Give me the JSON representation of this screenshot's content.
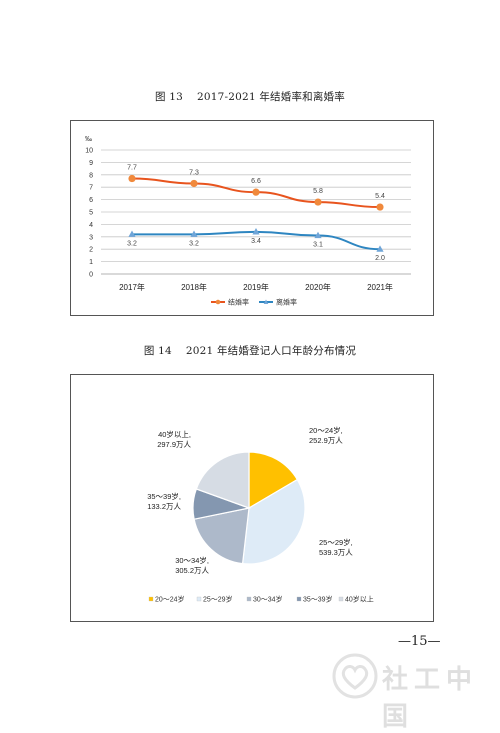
{
  "captions": {
    "fig13_number": "图 13",
    "fig13_title": "2017-2021 年结婚率和离婚率",
    "fig14_number": "图 14",
    "fig14_title": "2021 年结婚登记人口年龄分布情况"
  },
  "page_number": "—15—",
  "logo_text": "社工中国",
  "chart_data": [
    {
      "type": "line",
      "title": "",
      "ylabel": "‰",
      "ylim": [
        0,
        10
      ],
      "yticks": [
        "0",
        "1",
        "2",
        "3",
        "4",
        "5",
        "6",
        "7",
        "8",
        "9",
        "10"
      ],
      "categories": [
        "2017年",
        "2018年",
        "2019年",
        "2020年",
        "2021年"
      ],
      "grid": true,
      "legend_position": "bottom",
      "series": [
        {
          "name": "结婚率",
          "color": "#e8541e",
          "marker_color": "#f0893c",
          "marker": "circle",
          "values": [
            7.7,
            7.3,
            6.6,
            5.8,
            5.4
          ],
          "labels": [
            "7.7",
            "7.3",
            "6.6",
            "5.8",
            "5.4"
          ]
        },
        {
          "name": "离婚率",
          "color": "#2e86c1",
          "marker_color": "#6fa5d8",
          "marker": "triangle",
          "values": [
            3.2,
            3.2,
            3.4,
            3.1,
            2.0
          ],
          "labels": [
            "3.2",
            "3.2",
            "3.4",
            "3.1",
            "2.0"
          ]
        }
      ]
    },
    {
      "type": "pie",
      "title": "",
      "legend_position": "bottom",
      "slices": [
        {
          "name": "20～24岁",
          "value": 252.9,
          "label_line1": "20～24岁,",
          "label_line2": "252.9万人",
          "color": "#ffc000"
        },
        {
          "name": "25～29岁",
          "value": 539.3,
          "label_line1": "25～29岁,",
          "label_line2": "539.3万人",
          "color": "#deebf7"
        },
        {
          "name": "30～34岁",
          "value": 305.2,
          "label_line1": "30～34岁,",
          "label_line2": "305.2万人",
          "color": "#adb9ca"
        },
        {
          "name": "35～39岁",
          "value": 133.2,
          "label_line1": "35～39岁,",
          "label_line2": "133.2万人",
          "color": "#8497b0"
        },
        {
          "name": "40岁以上",
          "value": 297.9,
          "label_line1": "40岁以上,",
          "label_line2": "297.9万人",
          "color": "#d6dce4"
        }
      ]
    }
  ]
}
